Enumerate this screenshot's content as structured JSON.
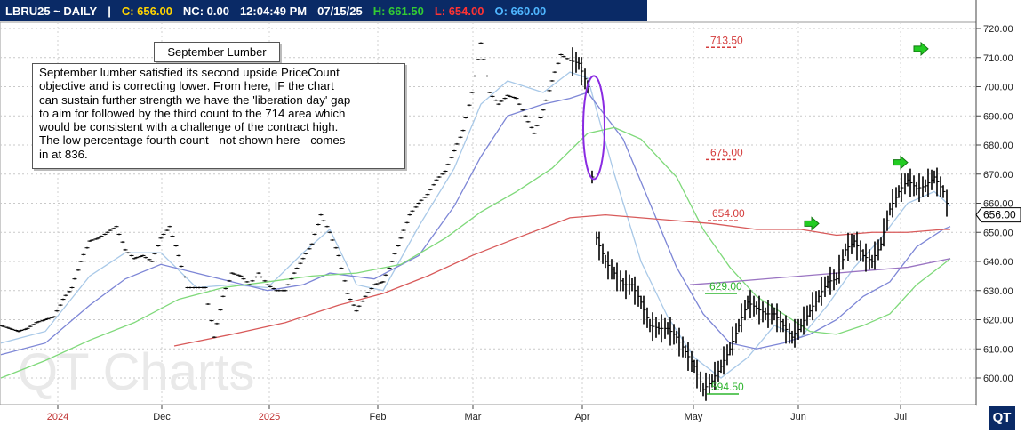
{
  "header": {
    "symbol": "LBRU25 ~ DAILY",
    "sep": "|",
    "close": "C: 656.00",
    "net_change": "NC: 0.00",
    "time": "12:04:49 PM",
    "date": "07/15/25",
    "high": "H: 661.50",
    "low": "L: 654.00",
    "open": "O: 660.00"
  },
  "colors": {
    "header_bg": "#0a2a66",
    "close": "#ffd400",
    "high": "#33cc33",
    "low": "#ff3333",
    "open": "#4fb6ff",
    "ma_fast": "#a9c9e8",
    "ma_mid": "#7d86d6",
    "ma_green": "#7fd97a",
    "ma_red": "#d85a5a",
    "ma_purple": "#9a74c2",
    "price_bars": "#000000"
  },
  "annotations": {
    "title": "September Lumber",
    "note": "September lumber satisfied its second upside PriceCount\n objective and is correcting lower.  From here, IF the chart\ncan sustain further strength we have the 'liberation day' gap\nto aim for followed by the third count to the 714 area which\nwould be consistent with a challenge of the contract high.\nThe low percentage fourth count - not shown here - comes\nin at 836.",
    "levels": [
      {
        "label": "713.50",
        "value": 713.5,
        "color": "#d43c3c"
      },
      {
        "label": "675.00",
        "value": 675,
        "color": "#d43c3c"
      },
      {
        "label": "654.00",
        "value": 654,
        "color": "#d43c3c"
      },
      {
        "label": "629.00",
        "value": 629,
        "color": "#2fb52f"
      },
      {
        "label": "594.50",
        "value": 594.5,
        "color": "#2fb52f"
      }
    ],
    "watermark": "QT Charts",
    "last_price_tag": "656.00",
    "logo": "QT"
  },
  "chart_data": {
    "type": "line",
    "title": "",
    "xlabel": "",
    "ylabel": "",
    "ylim": [
      592,
      725
    ],
    "y_ticks": [
      "720.00",
      "710.00",
      "700.00",
      "690.00",
      "680.00",
      "670.00",
      "660.00",
      "650.00",
      "640.00",
      "630.00",
      "620.00",
      "610.00",
      "600.00"
    ],
    "x_labels": [
      "2024",
      "Dec",
      "2025",
      "Feb",
      "Mar",
      "Apr",
      "May",
      "Jun",
      "Jul"
    ],
    "grid": true,
    "series": [
      {
        "points": [
          [
            0,
            618
          ],
          [
            10,
            617
          ],
          [
            20,
            616
          ],
          [
            30,
            617
          ],
          [
            40,
            619
          ],
          [
            50,
            620
          ],
          [
            60,
            621
          ],
          [
            70,
            627
          ],
          [
            80,
            631
          ],
          [
            90,
            640
          ],
          [
            100,
            647
          ],
          [
            110,
            648
          ],
          [
            120,
            650
          ],
          [
            130,
            652
          ],
          [
            140,
            644
          ],
          [
            150,
            641
          ],
          [
            160,
            642
          ],
          [
            170,
            640
          ],
          [
            180,
            648
          ],
          [
            190,
            652
          ],
          [
            200,
            642
          ],
          [
            210,
            631
          ],
          [
            220,
            631
          ],
          [
            230,
            631
          ],
          [
            240,
            614
          ],
          [
            250,
            628
          ],
          [
            260,
            636
          ],
          [
            270,
            635
          ],
          [
            280,
            632
          ],
          [
            290,
            636
          ],
          [
            300,
            632
          ],
          [
            310,
            630
          ],
          [
            320,
            630
          ],
          [
            330,
            636
          ],
          [
            340,
            641
          ],
          [
            350,
            646
          ],
          [
            360,
            656
          ],
          [
            370,
            650
          ],
          [
            380,
            642
          ],
          [
            390,
            629
          ],
          [
            400,
            623
          ],
          [
            410,
            628
          ],
          [
            420,
            632
          ],
          [
            430,
            633
          ],
          [
            440,
            640
          ],
          [
            450,
            648
          ],
          [
            460,
            656
          ],
          [
            470,
            660
          ],
          [
            480,
            663
          ],
          [
            490,
            668
          ],
          [
            500,
            671
          ],
          [
            510,
            678
          ],
          [
            520,
            685
          ],
          [
            530,
            698
          ],
          [
            540,
            715
          ],
          [
            550,
            698
          ],
          [
            560,
            694
          ],
          [
            570,
            697
          ],
          [
            580,
            696
          ],
          [
            590,
            690
          ],
          [
            600,
            684
          ],
          [
            610,
            692
          ],
          [
            620,
            702
          ],
          [
            630,
            711
          ],
          [
            640,
            709
          ],
          [
            650,
            708
          ],
          [
            660,
            700
          ],
          [
            665,
            669
          ],
          [
            670,
            648
          ],
          [
            680,
            640
          ],
          [
            690,
            636
          ],
          [
            700,
            632
          ],
          [
            710,
            632
          ],
          [
            720,
            626
          ],
          [
            730,
            618
          ],
          [
            740,
            617
          ],
          [
            750,
            617
          ],
          [
            760,
            614
          ],
          [
            770,
            609
          ],
          [
            780,
            604
          ],
          [
            790,
            596
          ],
          [
            800,
            599
          ],
          [
            810,
            604
          ],
          [
            820,
            610
          ],
          [
            830,
            618
          ],
          [
            840,
            626
          ],
          [
            850,
            624
          ],
          [
            860,
            622
          ],
          [
            870,
            622
          ],
          [
            880,
            618
          ],
          [
            890,
            614
          ],
          [
            900,
            618
          ],
          [
            910,
            623
          ],
          [
            920,
            628
          ],
          [
            930,
            633
          ],
          [
            940,
            634
          ],
          [
            950,
            644
          ],
          [
            960,
            647
          ],
          [
            970,
            642
          ],
          [
            980,
            640
          ],
          [
            990,
            646
          ],
          [
            1000,
            658
          ],
          [
            1010,
            664
          ],
          [
            1020,
            668
          ],
          [
            1030,
            665
          ],
          [
            1040,
            666
          ],
          [
            1050,
            669
          ],
          [
            1060,
            664
          ],
          [
            1068,
            656
          ]
        ]
      }
    ],
    "moving_averages": [
      {
        "points": [
          [
            0,
            612
          ],
          [
            50,
            616
          ],
          [
            100,
            635
          ],
          [
            140,
            643
          ],
          [
            180,
            643
          ],
          [
            220,
            631
          ],
          [
            260,
            632
          ],
          [
            300,
            631
          ],
          [
            340,
            643
          ],
          [
            370,
            651
          ],
          [
            400,
            632
          ],
          [
            430,
            630
          ],
          [
            470,
            652
          ],
          [
            510,
            672
          ],
          [
            540,
            694
          ],
          [
            570,
            702
          ],
          [
            610,
            698
          ],
          [
            640,
            705
          ],
          [
            660,
            703
          ],
          [
            690,
            670
          ],
          [
            720,
            640
          ],
          [
            750,
            621
          ],
          [
            780,
            607
          ],
          [
            810,
            600
          ],
          [
            840,
            607
          ],
          [
            870,
            618
          ],
          [
            900,
            614
          ],
          [
            930,
            625
          ],
          [
            960,
            638
          ],
          [
            990,
            648
          ],
          [
            1020,
            660
          ],
          [
            1050,
            664
          ],
          [
            1068,
            659
          ]
        ]
      },
      {
        "points": [
          [
            0,
            608
          ],
          [
            50,
            612
          ],
          [
            100,
            625
          ],
          [
            140,
            634
          ],
          [
            180,
            639
          ],
          [
            220,
            636
          ],
          [
            260,
            633
          ],
          [
            300,
            630
          ],
          [
            340,
            632
          ],
          [
            370,
            636
          ],
          [
            420,
            634
          ],
          [
            470,
            642
          ],
          [
            510,
            659
          ],
          [
            540,
            676
          ],
          [
            570,
            690
          ],
          [
            610,
            694
          ],
          [
            640,
            696
          ],
          [
            660,
            698
          ],
          [
            700,
            682
          ],
          [
            730,
            660
          ],
          [
            760,
            638
          ],
          [
            790,
            622
          ],
          [
            820,
            612
          ],
          [
            850,
            610
          ],
          [
            880,
            612
          ],
          [
            910,
            615
          ],
          [
            940,
            620
          ],
          [
            970,
            628
          ],
          [
            1000,
            633
          ],
          [
            1030,
            645
          ],
          [
            1060,
            651
          ],
          [
            1068,
            652
          ]
        ]
      },
      {
        "points": [
          [
            0,
            600
          ],
          [
            50,
            606
          ],
          [
            100,
            613
          ],
          [
            150,
            619
          ],
          [
            200,
            627
          ],
          [
            250,
            631
          ],
          [
            300,
            633
          ],
          [
            350,
            635
          ],
          [
            400,
            636
          ],
          [
            450,
            639
          ],
          [
            500,
            648
          ],
          [
            540,
            657
          ],
          [
            580,
            664
          ],
          [
            620,
            672
          ],
          [
            660,
            684
          ],
          [
            690,
            686
          ],
          [
            720,
            682
          ],
          [
            760,
            669
          ],
          [
            790,
            651
          ],
          [
            820,
            638
          ],
          [
            850,
            628
          ],
          [
            880,
            622
          ],
          [
            910,
            616
          ],
          [
            940,
            615
          ],
          [
            970,
            618
          ],
          [
            1000,
            622
          ],
          [
            1030,
            632
          ],
          [
            1060,
            639
          ],
          [
            1068,
            641
          ]
        ]
      },
      {
        "points": [
          [
            195,
            611
          ],
          [
            260,
            615
          ],
          [
            320,
            619
          ],
          [
            380,
            625
          ],
          [
            430,
            629
          ],
          [
            480,
            635
          ],
          [
            530,
            642
          ],
          [
            580,
            648
          ],
          [
            640,
            655
          ],
          [
            680,
            656
          ],
          [
            720,
            655
          ],
          [
            760,
            654
          ],
          [
            800,
            653
          ],
          [
            850,
            651
          ],
          [
            900,
            651
          ],
          [
            940,
            649
          ],
          [
            980,
            650
          ],
          [
            1020,
            650
          ],
          [
            1060,
            651
          ],
          [
            1068,
            651
          ]
        ]
      },
      {
        "points": [
          [
            775,
            632
          ],
          [
            820,
            633
          ],
          [
            860,
            634
          ],
          [
            900,
            635
          ],
          [
            940,
            636
          ],
          [
            980,
            637
          ],
          [
            1020,
            638
          ],
          [
            1068,
            641
          ]
        ]
      }
    ]
  }
}
